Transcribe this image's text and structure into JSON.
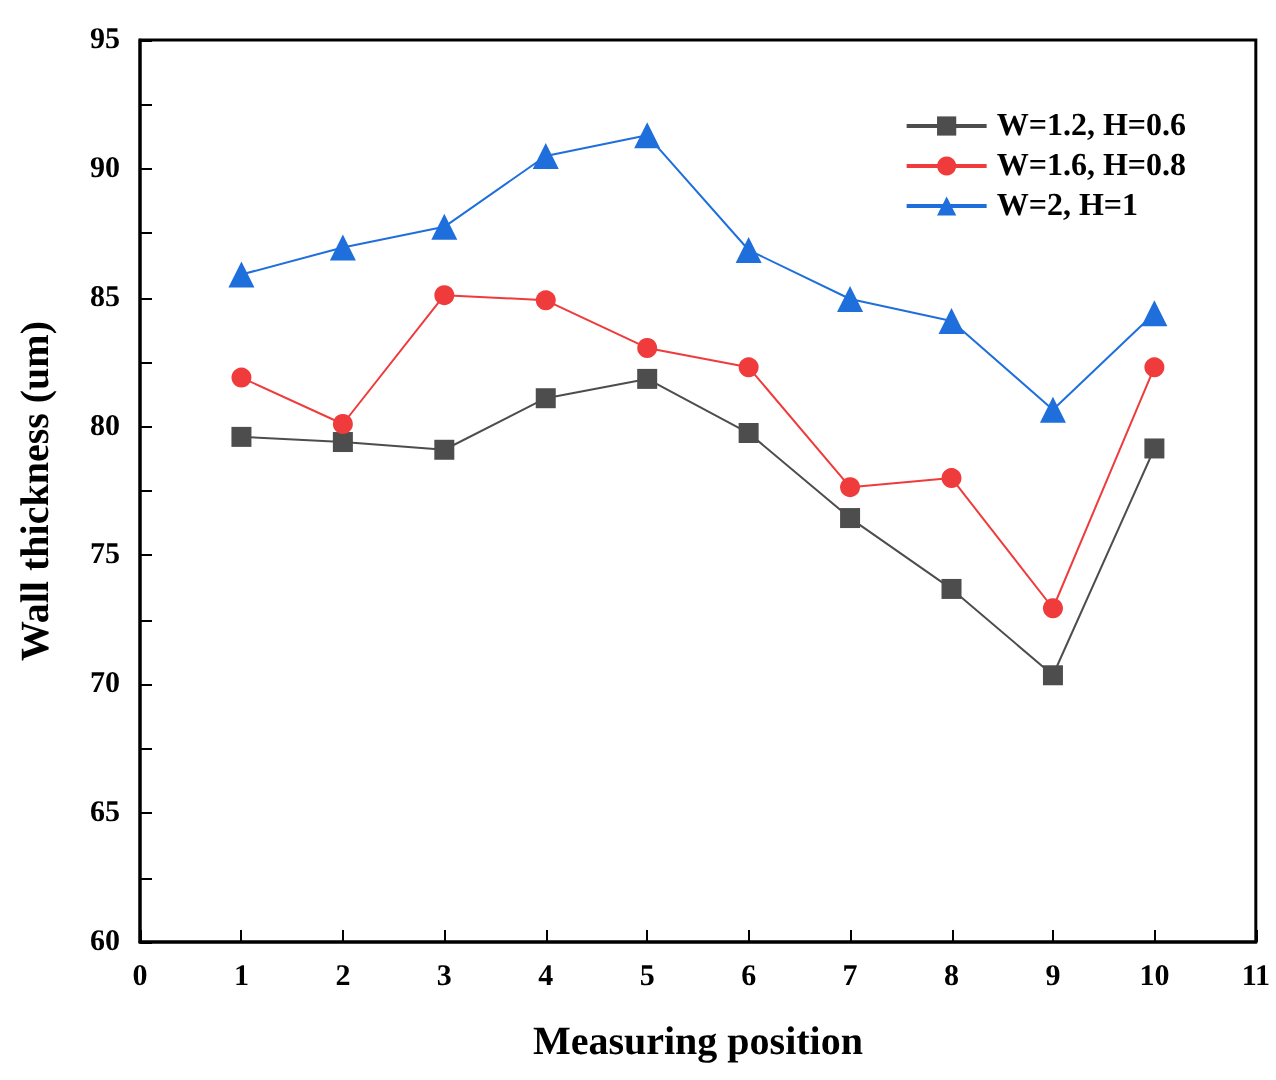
{
  "chart_data": {
    "type": "line",
    "xlabel": "Measuring position",
    "ylabel": "Wall thickness (um)",
    "x": [
      1,
      2,
      3,
      4,
      5,
      6,
      7,
      8,
      9,
      10
    ],
    "series": [
      {
        "name": "W=1.2, H=0.6",
        "color": "#4d4d4d",
        "marker": "square",
        "values": [
          79.6,
          79.4,
          79.1,
          81.1,
          81.85,
          79.75,
          76.45,
          73.7,
          70.35,
          79.15
        ]
      },
      {
        "name": "W=1.6, H=0.8",
        "color": "#ef3b3b",
        "marker": "circle",
        "values": [
          81.9,
          80.1,
          85.1,
          84.9,
          83.05,
          82.3,
          77.65,
          78.0,
          72.95,
          82.3
        ]
      },
      {
        "name": "W=2, H=1",
        "color": "#1e6fdc",
        "marker": "triangle",
        "values": [
          85.9,
          86.95,
          87.75,
          90.5,
          91.3,
          86.85,
          84.95,
          84.1,
          80.65,
          84.4
        ]
      }
    ],
    "xlim": [
      0,
      11
    ],
    "xticks": [
      0,
      1,
      2,
      3,
      4,
      5,
      6,
      7,
      8,
      9,
      10,
      11
    ],
    "ylim": [
      60,
      95
    ],
    "yticks": [
      60,
      {
        "value": 62.5,
        "label": null
      },
      65,
      {
        "value": 67.5,
        "label": null
      },
      70,
      {
        "value": 72.5,
        "label": null
      },
      75,
      {
        "value": 77.5,
        "label": null
      },
      80,
      {
        "value": 82.5,
        "label": null
      },
      85,
      {
        "value": 87.5,
        "label": null
      },
      90,
      {
        "value": 92.5,
        "label": null
      },
      95
    ],
    "legend": "top right",
    "grid": false,
    "line_style": "solid"
  }
}
